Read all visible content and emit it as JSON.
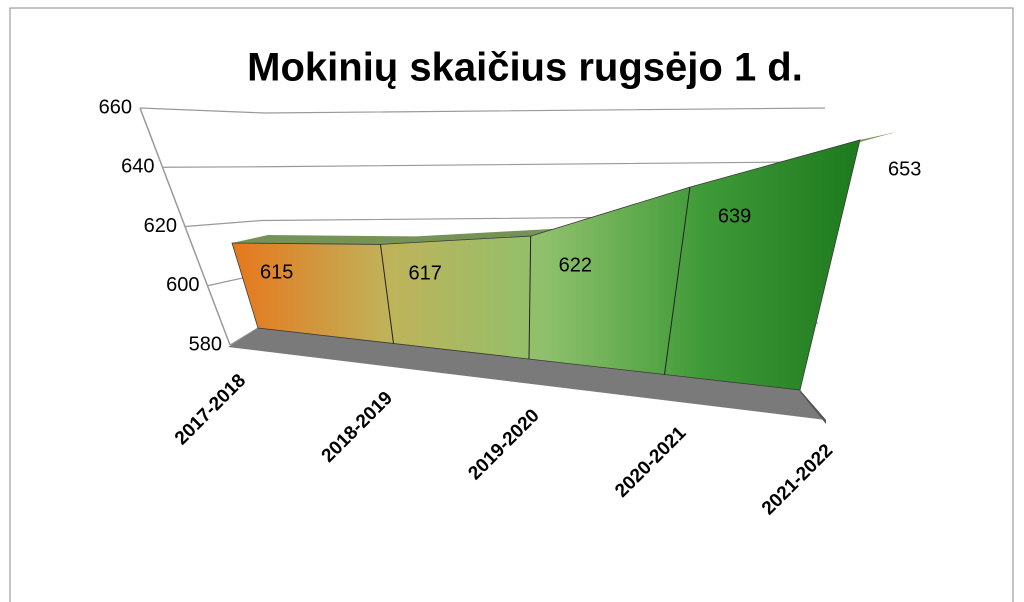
{
  "chart_data": {
    "type": "area",
    "title": "Mokinių skaičius rugsėjo 1 d.",
    "categories": [
      "2017-2018",
      "2018-2019",
      "2019-2020",
      "2020-2021",
      "2021-2022"
    ],
    "values": [
      615,
      617,
      622,
      639,
      653
    ],
    "gradient": [
      "#e8761c",
      "#bfb35a",
      "#8fc06c",
      "#3f9a38",
      "#1d7a1d"
    ],
    "ylim": [
      580,
      660
    ],
    "yticks": [
      580,
      600,
      620,
      640,
      660
    ],
    "grid": true
  }
}
